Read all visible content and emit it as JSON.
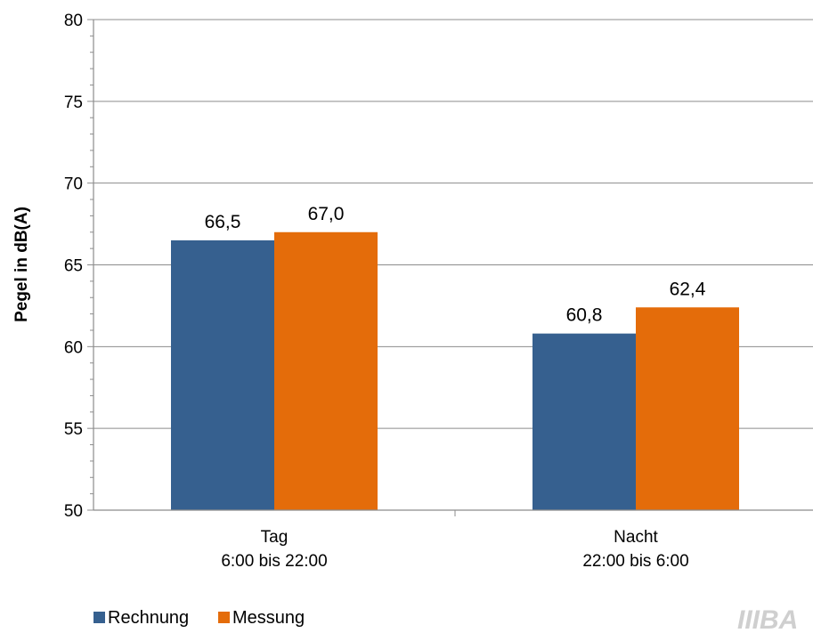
{
  "chart_data": {
    "type": "bar",
    "categories": [
      [
        "Tag",
        "6:00 bis 22:00"
      ],
      [
        "Nacht",
        "22:00 bis 6:00"
      ]
    ],
    "series": [
      {
        "name": "Rechnung",
        "values": [
          66.5,
          60.8
        ],
        "labels": [
          "66,5",
          "60,8"
        ],
        "color": "#36608f"
      },
      {
        "name": "Messung",
        "values": [
          67.0,
          62.4
        ],
        "labels": [
          "67,0",
          "62,4"
        ],
        "color": "#e46c0a"
      }
    ],
    "ylabel": "Pegel in dB(A)",
    "ylim": [
      50,
      80
    ],
    "yticks": [
      50,
      55,
      60,
      65,
      70,
      75,
      80
    ],
    "grid": true,
    "legend": "bottom-left"
  },
  "logo": {
    "text": "IIIBA"
  }
}
